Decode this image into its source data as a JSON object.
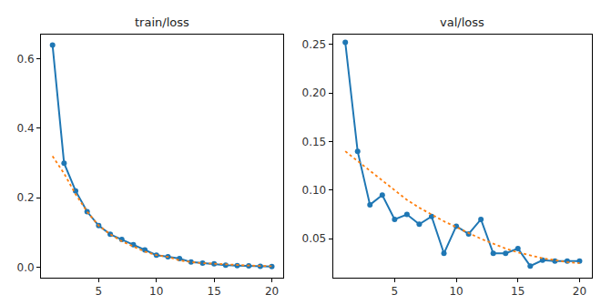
{
  "chart_data": [
    {
      "type": "line",
      "title": "train/loss",
      "x": [
        1,
        2,
        3,
        4,
        5,
        6,
        7,
        8,
        9,
        10,
        11,
        12,
        13,
        14,
        15,
        16,
        17,
        18,
        19,
        20
      ],
      "series": [
        {
          "color": "#1f77b4",
          "marker": "circle",
          "line_style": "solid",
          "values": [
            0.64,
            0.3,
            0.22,
            0.16,
            0.12,
            0.095,
            0.08,
            0.065,
            0.05,
            0.035,
            0.03,
            0.025,
            0.015,
            0.012,
            0.01,
            0.006,
            0.005,
            0.004,
            0.003,
            0.002
          ]
        },
        {
          "color": "#ff7f0e",
          "marker": "none",
          "line_style": "dotted",
          "values": [
            0.32,
            0.27,
            0.21,
            0.16,
            0.12,
            0.095,
            0.075,
            0.06,
            0.045,
            0.035,
            0.03,
            0.02,
            0.015,
            0.012,
            0.01,
            0.008,
            0.006,
            0.005,
            0.004,
            0.003
          ]
        }
      ],
      "xlim": [
        0,
        21
      ],
      "xticks": [
        5,
        10,
        15,
        20
      ],
      "ylim": [
        -0.03,
        0.67
      ],
      "yticks": [
        {
          "value": 0,
          "label": "0.0"
        },
        0.2,
        0.4,
        0.6
      ],
      "grid": false
    },
    {
      "type": "line",
      "title": "val/loss",
      "x": [
        1,
        2,
        3,
        4,
        5,
        6,
        7,
        8,
        9,
        10,
        11,
        12,
        13,
        14,
        15,
        16,
        17,
        18,
        19,
        20
      ],
      "series": [
        {
          "color": "#1f77b4",
          "marker": "circle",
          "line_style": "solid",
          "values": [
            0.252,
            0.14,
            0.085,
            0.095,
            0.07,
            0.075,
            0.065,
            0.073,
            0.035,
            0.063,
            0.055,
            0.07,
            0.035,
            0.035,
            0.04,
            0.022,
            0.028,
            0.027,
            0.027,
            0.027
          ]
        },
        {
          "color": "#ff7f0e",
          "marker": "none",
          "line_style": "dotted",
          "values": [
            0.14,
            0.13,
            0.12,
            0.11,
            0.1,
            0.09,
            0.082,
            0.075,
            0.068,
            0.062,
            0.056,
            0.05,
            0.045,
            0.04,
            0.036,
            0.033,
            0.03,
            0.028,
            0.026,
            0.025
          ]
        }
      ],
      "xlim": [
        0,
        21
      ],
      "xticks": [
        5,
        10,
        15,
        20
      ],
      "ylim": [
        0.01,
        0.26
      ],
      "yticks": [
        0.05,
        {
          "value": 0.1,
          "label": "0.10"
        },
        0.15,
        {
          "value": 0.2,
          "label": "0.20"
        },
        0.25
      ],
      "grid": false
    }
  ]
}
